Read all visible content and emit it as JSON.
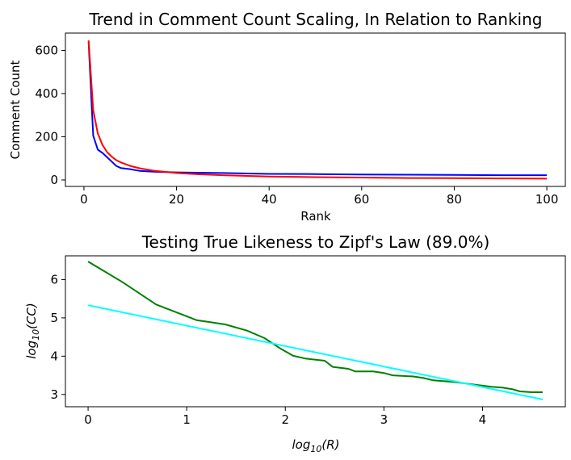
{
  "chart_data": [
    {
      "type": "line",
      "title": "Trend in Comment Count Scaling, In Relation to Ranking",
      "xlabel": "Rank",
      "ylabel": "Comment Count",
      "xlim": [
        -4,
        104
      ],
      "ylim": [
        -30,
        680
      ],
      "xticks": [
        0,
        20,
        40,
        60,
        80,
        100
      ],
      "yticks": [
        0,
        200,
        400,
        600
      ],
      "grid": false,
      "series": [
        {
          "color": "#0000ff",
          "x": [
            1,
            2,
            3,
            4,
            5,
            6,
            7,
            8,
            10,
            12,
            15,
            20,
            30,
            40,
            50,
            60,
            70,
            80,
            90,
            100
          ],
          "y": [
            640,
            205,
            140,
            125,
            105,
            85,
            65,
            55,
            50,
            42,
            38,
            35,
            32,
            28,
            27,
            25,
            24,
            23,
            22,
            22
          ]
        },
        {
          "color": "#ff0000",
          "x": [
            1,
            2,
            3,
            4,
            5,
            6,
            7,
            8,
            10,
            12,
            15,
            20,
            25,
            30,
            40,
            50,
            60,
            70,
            80,
            90,
            100
          ],
          "y": [
            646,
            323,
            215,
            162,
            129,
            108,
            92,
            81,
            65,
            54,
            43,
            32,
            26,
            22,
            16,
            13,
            11,
            9,
            8,
            7,
            6
          ]
        }
      ]
    },
    {
      "type": "line",
      "title": "Testing True Likeness to Zipf's Law (89.0%)",
      "xlabel_base": "log",
      "xlabel_sub": "10",
      "xlabel_arg": "(R)",
      "ylabel_base": "log",
      "ylabel_sub": "10",
      "ylabel_arg": "(CC)",
      "xlim": [
        -0.23,
        4.84
      ],
      "ylim": [
        2.68,
        6.62
      ],
      "xticks": [
        0,
        1,
        2,
        3,
        4
      ],
      "yticks": [
        3,
        4,
        5,
        6
      ],
      "grid": false,
      "series": [
        {
          "color": "#008000",
          "x": [
            0,
            0.35,
            0.69,
            1.1,
            1.39,
            1.61,
            1.79,
            1.95,
            2.08,
            2.2,
            2.4,
            2.48,
            2.64,
            2.71,
            2.89,
            3.0,
            3.09,
            3.3,
            3.4,
            3.5,
            3.69,
            3.8,
            3.91,
            4.09,
            4.2,
            4.3,
            4.38,
            4.5,
            4.61
          ],
          "y": [
            6.47,
            5.93,
            5.35,
            4.94,
            4.83,
            4.67,
            4.47,
            4.2,
            4.01,
            3.94,
            3.88,
            3.72,
            3.67,
            3.6,
            3.6,
            3.56,
            3.5,
            3.47,
            3.43,
            3.37,
            3.33,
            3.3,
            3.26,
            3.2,
            3.18,
            3.14,
            3.08,
            3.06,
            3.06
          ]
        },
        {
          "color": "#00ffff",
          "x": [
            0,
            4.61
          ],
          "y": [
            5.33,
            2.87
          ]
        }
      ]
    }
  ]
}
